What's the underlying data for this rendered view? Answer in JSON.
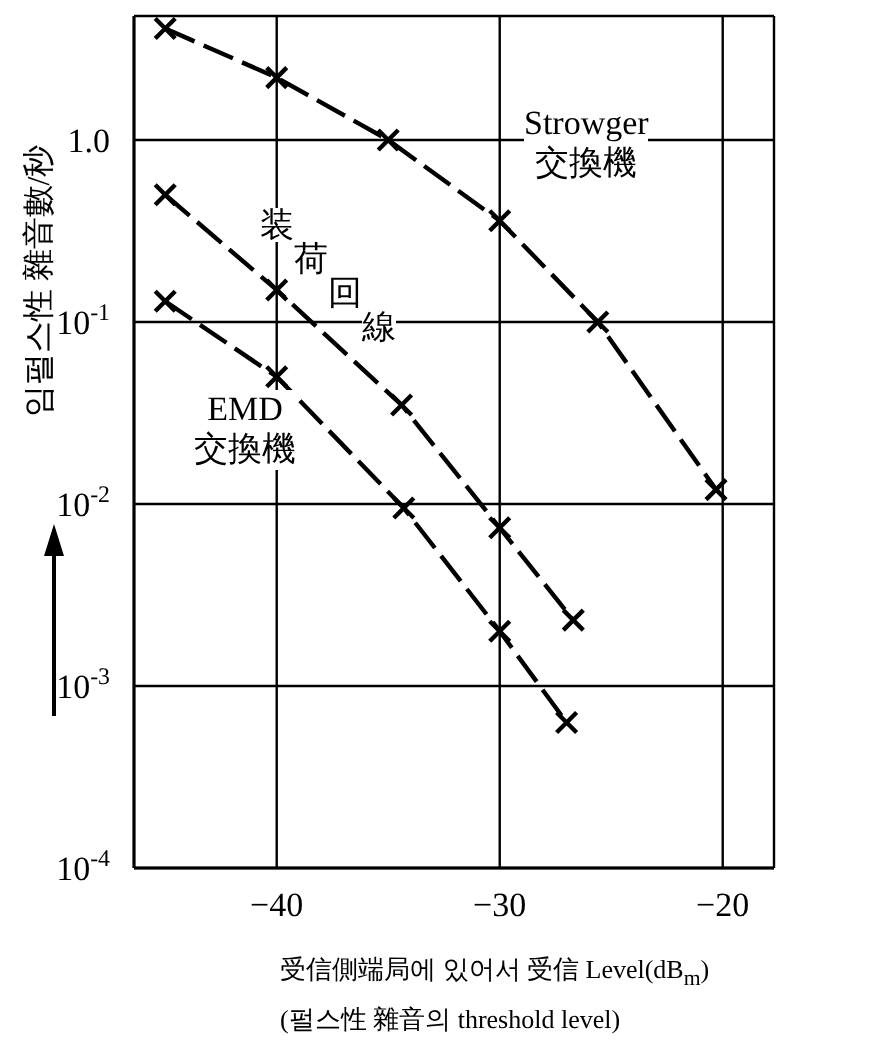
{
  "chart_data": {
    "type": "line",
    "ylabel": "임펄스性 雜音數/秒",
    "xlabel": "受信側端局에 있어서 受信 Level(dB$_{m}$)",
    "annotations": [
      "(펄스性 雜音의 threshold level)"
    ],
    "xlim": [
      -46.4,
      -17.7
    ],
    "xticks": [
      -40,
      -30,
      -20
    ],
    "ylim": [
      0.0001,
      4.8
    ],
    "yticks": [
      {
        "value": 1,
        "label": "1.0"
      },
      {
        "value": 0.1,
        "label": "10$^{-1}$"
      },
      {
        "value": 0.01,
        "label": "10$^{-2}$"
      },
      {
        "value": 0.001,
        "label": "10$^{-3}$"
      },
      {
        "value": 0.0001,
        "label": "10$^{-4}$"
      }
    ],
    "log": "y",
    "grid": true,
    "legend": false,
    "marker": "cross",
    "line_style": "dashed",
    "series": [
      {
        "name": "Strowger 交換機",
        "color": "#000000",
        "x": [
          -45,
          -40,
          -35,
          -30,
          -25.6,
          -20.3
        ],
        "values": [
          4.1,
          2.2,
          1.0,
          0.36,
          0.1,
          0.012
        ]
      },
      {
        "name": "装荷回線",
        "color": "#000000",
        "x": [
          -45,
          -40,
          -34.4,
          -30,
          -26.7
        ],
        "values": [
          0.5,
          0.15,
          0.035,
          0.0074,
          0.0023
        ]
      },
      {
        "name": "EMD 交換機",
        "color": "#000000",
        "x": [
          -45,
          -40,
          -34.3,
          -30,
          -27
        ],
        "values": [
          0.13,
          0.05,
          0.0095,
          0.002,
          0.00063
        ]
      }
    ]
  }
}
